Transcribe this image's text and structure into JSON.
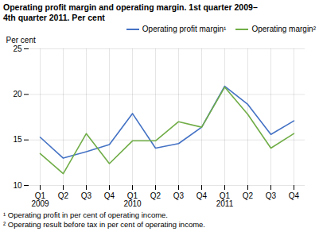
{
  "chart_data": {
    "type": "line",
    "title": "Operating profit margin and operating margin. 1st quarter 2009–\n4th quarter 2011. Per cent",
    "ylabel": "Per cent",
    "categories": [
      "Q1\n2009",
      "Q2",
      "Q3",
      "Q4",
      "Q1\n2010",
      "Q2",
      "Q3",
      "Q4",
      "Q1\n2011",
      "Q2",
      "Q3",
      "Q4"
    ],
    "series": [
      {
        "name": "Operating profit margin¹",
        "color": "#4472C4",
        "values": [
          15.3,
          13.0,
          13.7,
          14.5,
          17.9,
          14.1,
          14.6,
          16.4,
          20.9,
          18.9,
          15.6,
          17.1
        ]
      },
      {
        "name": "Operating margin²",
        "color": "#70AD47",
        "values": [
          13.5,
          11.3,
          15.7,
          12.4,
          14.9,
          14.9,
          17.0,
          16.4,
          20.8,
          17.8,
          14.1,
          15.7
        ]
      }
    ],
    "ylim": [
      10,
      25
    ],
    "yticks": [
      10,
      15,
      20,
      25
    ],
    "grid": true,
    "legend": "upper right",
    "annotations": [
      "¹ Operating profit in per cent of operating income.",
      "² Operating result before tax in per cent of operating income."
    ]
  }
}
